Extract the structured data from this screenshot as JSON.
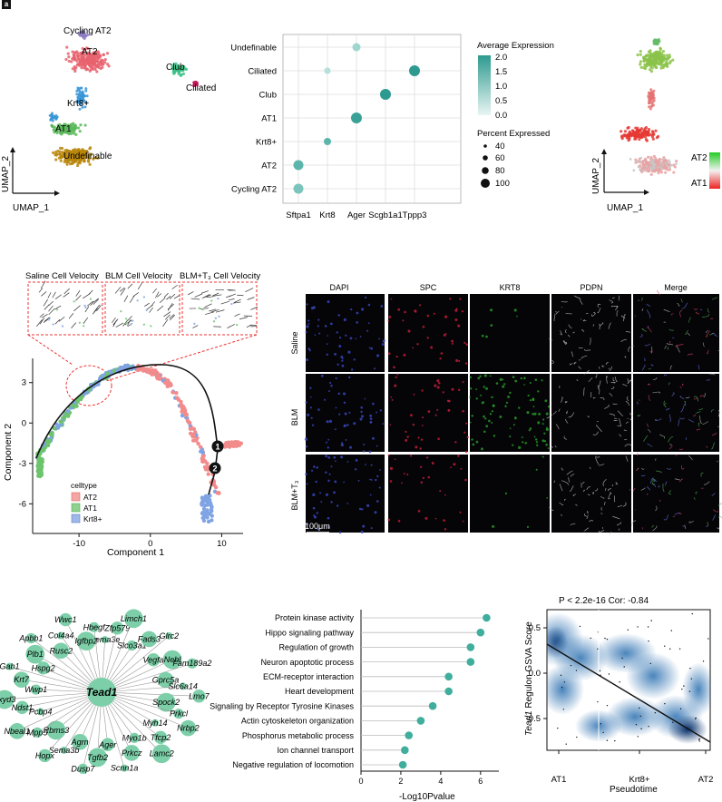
{
  "panel_letter": "a",
  "umapA": {
    "xlabel": "UMAP_1",
    "ylabel": "UMAP_2",
    "labels": [
      "Cycling AT2",
      "AT2",
      "Club",
      "Ciliated",
      "Krt8+",
      "AT1",
      "Undefinable"
    ],
    "colors": {
      "cycling": "#8e7cc3",
      "at2": "#e8636e",
      "club": "#3bbf86",
      "ciliated": "#c2185b",
      "krt8": "#3a96d8",
      "at1": "#5cb85c",
      "undef": "#b8860b"
    }
  },
  "dotplot": {
    "genes": [
      "Sftpa1",
      "Krt8",
      "Ager",
      "Scgb1a1",
      "Tppp3"
    ],
    "celltypes": [
      "Undefinable",
      "Ciliated",
      "Club",
      "AT1",
      "Krt8+",
      "AT2",
      "Cycling AT2"
    ],
    "legend_expr_title": "Average Expression",
    "legend_expr_ticks": [
      "2.0",
      "1.5",
      "1.0",
      "0.5",
      "0.0"
    ],
    "legend_pct_title": "Percent Expressed",
    "legend_pct_ticks": [
      "40",
      "60",
      "80",
      "100"
    ]
  },
  "umapC": {
    "xlabel": "UMAP_1",
    "ylabel": "UMAP_2",
    "legend_top": "AT2",
    "legend_bottom": "AT1"
  },
  "trajectory": {
    "insets": [
      "Saline Cell Velocity",
      "BLM Cell Velocity",
      "BLM+T₃ Cell Velocity"
    ],
    "xlabel": "Component 1",
    "ylabel": "Component 2",
    "xticks": [
      "-10",
      "0",
      "10"
    ],
    "yticks": [
      "3",
      "0",
      "-3",
      "-6"
    ],
    "legend_title": "celltype",
    "legend": [
      {
        "name": "AT2",
        "color": "#f4a6a6"
      },
      {
        "name": "AT1",
        "color": "#8fd18f"
      },
      {
        "name": "Krt8+",
        "color": "#9db8e8"
      }
    ],
    "branch_points": [
      "1",
      "2"
    ]
  },
  "microscopy": {
    "columns": [
      "DAPI",
      "SPC",
      "KRT8",
      "PDPN",
      "Merge"
    ],
    "rows": [
      "Saline",
      "BLM",
      "BLM+T₃"
    ],
    "scalebar": "100μm"
  },
  "network": {
    "hub": "Tead1",
    "genes": [
      "Sema3e",
      "Zfp579",
      "Limch1",
      "Slco3a1",
      "Fads3",
      "Glrc2",
      "Vegfa",
      "Nebl",
      "Fam189a2",
      "Gprc5a",
      "Slc6a14",
      "Lmo7",
      "Spock2",
      "Prkcl",
      "Nrbp2",
      "Myh14",
      "Tfcp2",
      "Lamc2",
      "Myo1b",
      "Prkcz",
      "Scnn1a",
      "Ager",
      "Tgfb2",
      "Dusp7",
      "Agrn",
      "Sema3b",
      "Hopx",
      "Rbms3",
      "Mpp5",
      "Nbeal1",
      "Pcbp4",
      "Ndst1",
      "Fxyd3",
      "Wwp1",
      "Krt7",
      "Gab1",
      "Hspg2",
      "Plb1",
      "Apbb1",
      "Rusc2",
      "Col4a4",
      "Wwc1",
      "Igfbp2",
      "Hbegf"
    ]
  },
  "chart_data": [
    {
      "type": "scatter",
      "title": "",
      "xlabel": "-Log10Pvalue",
      "ylabel": "",
      "xticks": [
        "0",
        "2",
        "4",
        "6"
      ],
      "xlim": [
        0,
        6.6
      ],
      "categories": [
        "Protein kinase activity",
        "Hippo signaling pathway",
        "Regulation of growth",
        "Neuron apoptotic process",
        "ECM-receptor interaction",
        "Heart development",
        "Signaling by Receptor Tyrosine Kinases",
        "Actin cytoskeleton organization",
        "Phosphorus metabolic process",
        "Ion channel transport",
        "Negative regulation of locomotion"
      ],
      "values": [
        6.3,
        6.0,
        5.5,
        5.5,
        4.4,
        4.4,
        3.6,
        3.0,
        2.4,
        2.2,
        2.1
      ]
    },
    {
      "type": "heatmap",
      "title": "P < 2.2e-16 Cor: -0.84",
      "xlabel": "Pseudotime",
      "ylabel_gene": "Tead1",
      "ylabel_rest": " Regulon GSVA Score",
      "xticks": [
        "AT1",
        "Krt8+",
        "AT2"
      ],
      "yticks": [
        "0.5",
        "0.0",
        "-0.5"
      ],
      "ylim": [
        -0.85,
        0.7
      ]
    }
  ]
}
